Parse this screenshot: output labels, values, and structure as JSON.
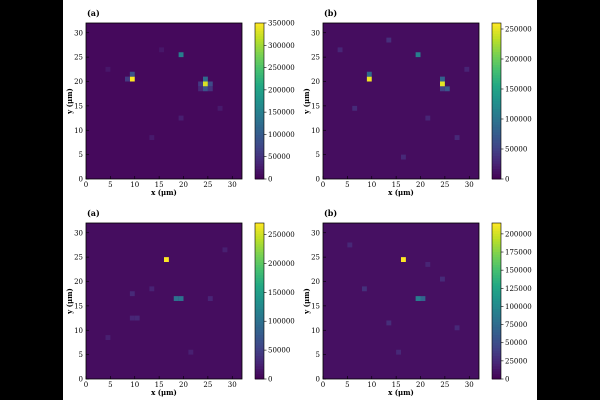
{
  "chart_data": [
    {
      "type": "heatmap",
      "panel_label": "(a)",
      "xlabel": "x (μm)",
      "ylabel": "y (μm)",
      "xlim": [
        0,
        32
      ],
      "ylim": [
        0,
        32
      ],
      "xticks": [
        "0",
        "5",
        "10",
        "15",
        "20",
        "25",
        "30"
      ],
      "yticks": [
        "0",
        "5",
        "10",
        "15",
        "20",
        "25",
        "30"
      ],
      "colorbar": {
        "min": 0,
        "max": 350000,
        "ticks": [
          "0",
          "50000",
          "100000",
          "150000",
          "200000",
          "250000",
          "300000",
          "350000"
        ]
      },
      "background_value": 8000,
      "cells": [
        {
          "x": 9.5,
          "y": 20.5,
          "v": 350000
        },
        {
          "x": 9.5,
          "y": 21.5,
          "v": 90000
        },
        {
          "x": 8.5,
          "y": 20.5,
          "v": 60000
        },
        {
          "x": 19.5,
          "y": 25.5,
          "v": 150000
        },
        {
          "x": 24.5,
          "y": 19.5,
          "v": 330000
        },
        {
          "x": 24.5,
          "y": 20.5,
          "v": 120000
        },
        {
          "x": 24.5,
          "y": 18.5,
          "v": 90000
        },
        {
          "x": 25.5,
          "y": 19.5,
          "v": 80000
        },
        {
          "x": 23.5,
          "y": 19.5,
          "v": 60000
        },
        {
          "x": 25.5,
          "y": 18.5,
          "v": 50000
        },
        {
          "x": 23.5,
          "y": 18.5,
          "v": 40000
        },
        {
          "x": 19.5,
          "y": 12.5,
          "v": 30000
        },
        {
          "x": 13.5,
          "y": 8.5,
          "v": 25000
        },
        {
          "x": 27.5,
          "y": 14.5,
          "v": 25000
        },
        {
          "x": 4.5,
          "y": 22.5,
          "v": 22000
        },
        {
          "x": 15.5,
          "y": 26.5,
          "v": 22000
        }
      ]
    },
    {
      "type": "heatmap",
      "panel_label": "(b)",
      "xlabel": "x (μm)",
      "ylabel": "y (μm)",
      "xlim": [
        0,
        32
      ],
      "ylim": [
        0,
        32
      ],
      "xticks": [
        "0",
        "5",
        "10",
        "15",
        "20",
        "25",
        "30"
      ],
      "yticks": [
        "0",
        "5",
        "10",
        "15",
        "20",
        "25",
        "30"
      ],
      "colorbar": {
        "min": 0,
        "max": 260000,
        "ticks": [
          "0",
          "50000",
          "100000",
          "150000",
          "200000",
          "250000"
        ]
      },
      "background_value": 9000,
      "cells": [
        {
          "x": 9.5,
          "y": 20.5,
          "v": 255000
        },
        {
          "x": 9.5,
          "y": 21.5,
          "v": 90000
        },
        {
          "x": 19.5,
          "y": 25.5,
          "v": 110000
        },
        {
          "x": 24.5,
          "y": 19.5,
          "v": 250000
        },
        {
          "x": 24.5,
          "y": 20.5,
          "v": 80000
        },
        {
          "x": 25.5,
          "y": 18.5,
          "v": 70000
        },
        {
          "x": 24.5,
          "y": 18.5,
          "v": 50000
        },
        {
          "x": 13.5,
          "y": 28.5,
          "v": 35000
        },
        {
          "x": 6.5,
          "y": 14.5,
          "v": 32000
        },
        {
          "x": 27.5,
          "y": 8.5,
          "v": 30000
        },
        {
          "x": 16.5,
          "y": 4.5,
          "v": 30000
        },
        {
          "x": 3.5,
          "y": 26.5,
          "v": 28000
        },
        {
          "x": 21.5,
          "y": 12.5,
          "v": 28000
        },
        {
          "x": 29.5,
          "y": 22.5,
          "v": 26000
        }
      ]
    },
    {
      "type": "heatmap",
      "panel_label": "(a)",
      "xlabel": "x (μm)",
      "ylabel": "y (μm)",
      "xlim": [
        0,
        32
      ],
      "ylim": [
        0,
        32
      ],
      "xticks": [
        "0",
        "5",
        "10",
        "15",
        "20",
        "25",
        "30"
      ],
      "yticks": [
        "0",
        "5",
        "10",
        "15",
        "20",
        "25",
        "30"
      ],
      "colorbar": {
        "min": 0,
        "max": 270000,
        "ticks": [
          "0",
          "50000",
          "100000",
          "150000",
          "200000",
          "250000"
        ]
      },
      "background_value": 9000,
      "cells": [
        {
          "x": 16.5,
          "y": 24.5,
          "v": 270000
        },
        {
          "x": 18.5,
          "y": 16.5,
          "v": 100000
        },
        {
          "x": 19.5,
          "y": 16.5,
          "v": 100000
        },
        {
          "x": 9.5,
          "y": 17.5,
          "v": 32000
        },
        {
          "x": 10.5,
          "y": 12.5,
          "v": 30000
        },
        {
          "x": 9.5,
          "y": 12.5,
          "v": 28000
        },
        {
          "x": 25.5,
          "y": 16.5,
          "v": 28000
        },
        {
          "x": 13.5,
          "y": 18.5,
          "v": 26000
        },
        {
          "x": 4.5,
          "y": 8.5,
          "v": 24000
        },
        {
          "x": 28.5,
          "y": 26.5,
          "v": 24000
        },
        {
          "x": 21.5,
          "y": 5.5,
          "v": 24000
        }
      ]
    },
    {
      "type": "heatmap",
      "panel_label": "(b)",
      "xlabel": "x (μm)",
      "ylabel": "y (μm)",
      "xlim": [
        0,
        32
      ],
      "ylim": [
        0,
        32
      ],
      "xticks": [
        "0",
        "5",
        "10",
        "15",
        "20",
        "25",
        "30"
      ],
      "yticks": [
        "0",
        "5",
        "10",
        "15",
        "20",
        "25",
        "30"
      ],
      "colorbar": {
        "min": 0,
        "max": 215000,
        "ticks": [
          "0",
          "25000",
          "50000",
          "75000",
          "100000",
          "125000",
          "150000",
          "175000",
          "200000"
        ]
      },
      "background_value": 9000,
      "cells": [
        {
          "x": 16.5,
          "y": 24.5,
          "v": 215000
        },
        {
          "x": 19.5,
          "y": 16.5,
          "v": 90000
        },
        {
          "x": 20.5,
          "y": 16.5,
          "v": 70000
        },
        {
          "x": 8.5,
          "y": 18.5,
          "v": 30000
        },
        {
          "x": 13.5,
          "y": 11.5,
          "v": 28000
        },
        {
          "x": 24.5,
          "y": 20.5,
          "v": 26000
        },
        {
          "x": 27.5,
          "y": 10.5,
          "v": 25000
        },
        {
          "x": 5.5,
          "y": 27.5,
          "v": 24000
        },
        {
          "x": 15.5,
          "y": 5.5,
          "v": 24000
        },
        {
          "x": 21.5,
          "y": 23.5,
          "v": 22000
        }
      ]
    }
  ]
}
